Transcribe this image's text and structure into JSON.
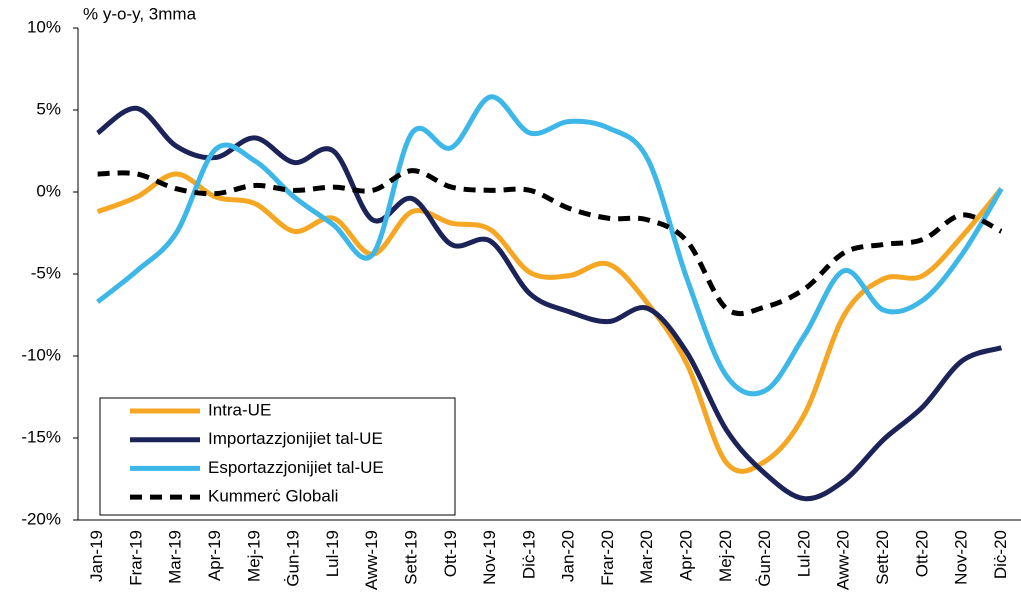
{
  "chart_data": {
    "type": "line",
    "y_label": "% y-o-y, 3mma",
    "categories": [
      "Jan-19",
      "Frar-19",
      "Mar-19",
      "Apr-19",
      "Mej-19",
      "Ġun-19",
      "Lul-19",
      "Aww-19",
      "Sett-19",
      "Ott-19",
      "Nov-19",
      "Diċ-19",
      "Jan-20",
      "Frar-20",
      "Mar-20",
      "Apr-20",
      "Mej-20",
      "Ġun-20",
      "Lul-20",
      "Aww-20",
      "Sett-20",
      "Ott-20",
      "Nov-20",
      "Diċ-20"
    ],
    "series": [
      {
        "name": "Intra-UE",
        "color": "#f5a623",
        "dash": false,
        "values": [
          -1.2,
          -0.3,
          1.1,
          -0.3,
          -0.7,
          -2.4,
          -1.6,
          -3.8,
          -1.2,
          -1.9,
          -2.3,
          -4.9,
          -5.1,
          -4.4,
          -6.8,
          -10.5,
          -16.5,
          -16.4,
          -13.5,
          -7.5,
          -5.3,
          -5.1,
          -2.7,
          0.2
        ]
      },
      {
        "name": "Importazzjonijiet tal-UE",
        "color": "#1b2358",
        "dash": false,
        "values": [
          3.6,
          5.1,
          2.8,
          2.1,
          3.3,
          1.8,
          2.5,
          -1.7,
          -0.4,
          -3.2,
          -3.0,
          -6.2,
          -7.3,
          -7.9,
          -7.1,
          -9.8,
          -14.5,
          -17.2,
          -18.7,
          -17.6,
          -15.1,
          -13.1,
          -10.3,
          -9.5
        ]
      },
      {
        "name": "Esportazzjonijiet tal-UE",
        "color": "#3db6e8",
        "dash": false,
        "values": [
          -6.7,
          -4.8,
          -2.5,
          2.6,
          1.9,
          -0.3,
          -2.0,
          -3.8,
          3.6,
          2.7,
          5.8,
          3.6,
          4.3,
          3.9,
          2.0,
          -5.3,
          -11.2,
          -12.1,
          -8.7,
          -4.8,
          -7.2,
          -6.6,
          -3.8,
          0.2
        ]
      },
      {
        "name": "Kummerċ Globali",
        "color": "#000000",
        "dash": true,
        "values": [
          1.1,
          1.1,
          0.2,
          -0.1,
          0.4,
          0.1,
          0.3,
          0.1,
          1.3,
          0.3,
          0.1,
          0.1,
          -1.0,
          -1.6,
          -1.7,
          -3.0,
          -7.1,
          -7.0,
          -5.9,
          -3.7,
          -3.2,
          -2.9,
          -1.4,
          -2.4
        ]
      }
    ],
    "ylim": [
      -20,
      10
    ],
    "yticks": [
      {
        "value": -20,
        "label": "-20%"
      },
      {
        "value": -15,
        "label": "-15%"
      },
      {
        "value": -10,
        "label": "-10%"
      },
      {
        "value": -5,
        "label": "-5%"
      },
      {
        "value": 0,
        "label": "0%"
      },
      {
        "value": 5,
        "label": "5%"
      },
      {
        "value": 10,
        "label": "10%"
      }
    ],
    "legend": "lower left"
  }
}
